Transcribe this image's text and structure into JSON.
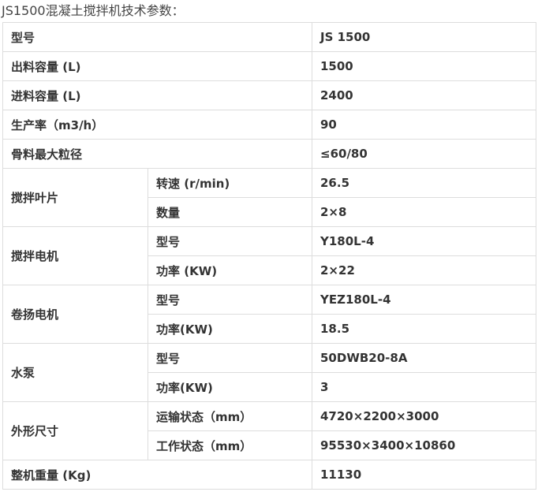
{
  "title": "JS1500混凝土搅拌机技术参数：",
  "rows": [
    {
      "label": "型号",
      "value": "JS 1500"
    },
    {
      "label": "出料容量 (L)",
      "value": "1500"
    },
    {
      "label": "进料容量 (L)",
      "value": "2400"
    },
    {
      "label": "生产率（m3/h）",
      "value": "90"
    },
    {
      "label": "骨料最大粒径",
      "value": "≤60/80"
    }
  ],
  "groups": [
    {
      "label": "搅拌叶片",
      "sub": [
        {
          "label": "转速 (r/min)",
          "value": "26.5"
        },
        {
          "label": "数量",
          "value": "2×8"
        }
      ]
    },
    {
      "label": "搅拌电机",
      "sub": [
        {
          "label": "型号",
          "value": "Y180L-4"
        },
        {
          "label": "功率 (KW)",
          "value": "2×22"
        }
      ]
    },
    {
      "label": "卷扬电机",
      "sub": [
        {
          "label": "型号",
          "value": "YEZ180L-4"
        },
        {
          "label": "功率(KW)",
          "value": "18.5"
        }
      ]
    },
    {
      "label": "水泵",
      "sub": [
        {
          "label": "型号",
          "value": "50DWB20-8A"
        },
        {
          "label": "功率(KW)",
          "value": " 3"
        }
      ]
    },
    {
      "label": "外形尺寸",
      "sub": [
        {
          "label": "运输状态（mm）",
          "value": "4720×2200×3000"
        },
        {
          "label": "工作状态（mm）",
          "value": "95530×3400×10860"
        }
      ]
    }
  ],
  "last": {
    "label": "整机重量 (Kg)",
    "value": "11130"
  }
}
